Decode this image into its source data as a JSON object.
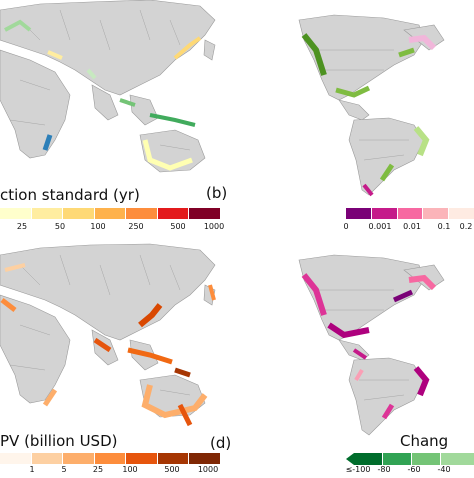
{
  "panels": {
    "a": {
      "colorbar_title": "ction standard (yr)",
      "ticks": [
        "25",
        "50",
        "100",
        "250",
        "500",
        "1000"
      ],
      "colors": [
        "#ffffcc",
        "#ffeda0",
        "#fed976",
        "#feb24c",
        "#fd8d3c",
        "#e31a1c",
        "#800026"
      ]
    },
    "b": {
      "label": "(b)",
      "ticks": [
        "0",
        "0.001",
        "0.01",
        "0.1",
        "0.2"
      ],
      "colors": [
        "#7a0177",
        "#c51b8a",
        "#f768a1",
        "#fbb4b9",
        "#feebe2"
      ]
    },
    "c": {
      "colorbar_title": "PV (billion USD)",
      "ticks": [
        "1",
        "5",
        "25",
        "100",
        "500",
        "1000"
      ],
      "colors": [
        "#fff5eb",
        "#fdd0a2",
        "#fdae6b",
        "#fd8d3c",
        "#e6550d",
        "#a63603",
        "#7f2704"
      ]
    },
    "d": {
      "label": "(d)",
      "colorbar_title": "Chang",
      "ticks": [
        "≤-100",
        "-80",
        "-60",
        "-40"
      ],
      "colors": [
        "#006d2c",
        "#31a354",
        "#74c476",
        "#a1d99b"
      ]
    }
  },
  "colors": {
    "land": "#d3d3d3",
    "border": "#9a9a9a"
  }
}
